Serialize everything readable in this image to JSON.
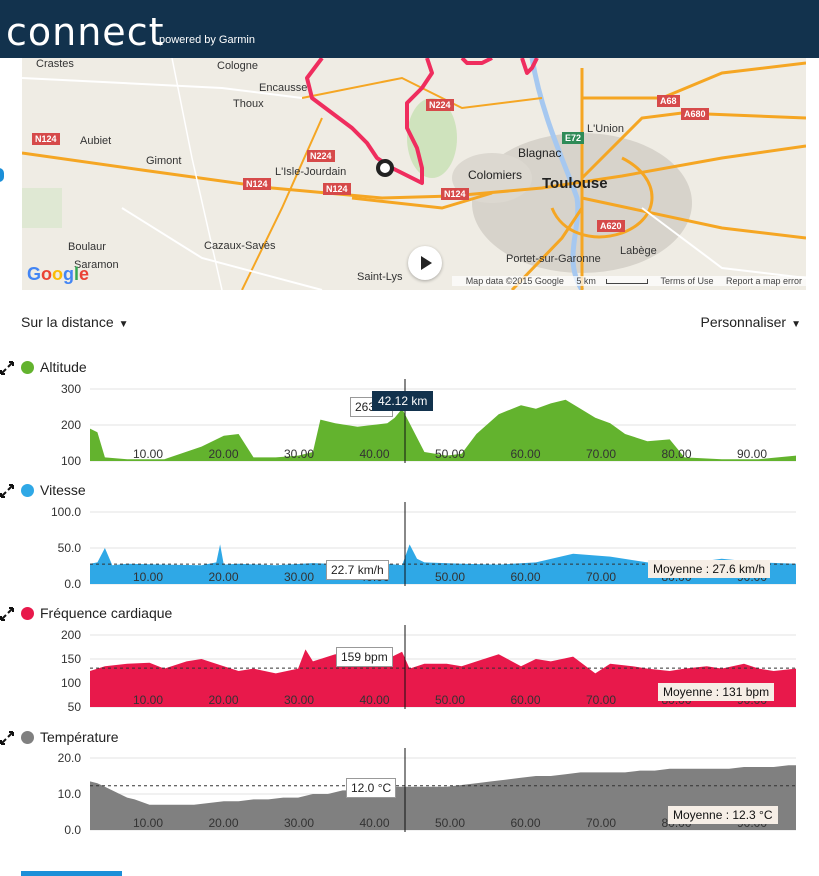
{
  "header": {
    "logo": "connect",
    "powered_by": "powered by Garmin"
  },
  "map": {
    "labels": {
      "crastes": "Crastes",
      "cologne": "Cologne",
      "encausse": "Encausse",
      "thoux": "Thoux",
      "aubiet": "Aubiet",
      "gimont": "Gimont",
      "lisle": "L'Isle-Jourdain",
      "boulaur": "Boulaur",
      "saramon": "Saramon",
      "cazaux": "Cazaux-Savès",
      "saintlys": "Saint-Lys",
      "blagnac": "Blagnac",
      "colomiers": "Colomiers",
      "toulouse": "Toulouse",
      "lunion": "L'Union",
      "portet": "Portet-sur-Garonne",
      "labege": "Labège"
    },
    "shields": {
      "n124a": "N124",
      "n124b": "N124",
      "n124c": "N124",
      "n124d": "N124",
      "n224a": "N224",
      "n224b": "N224",
      "a68": "A68",
      "a680": "A680",
      "e72": "E72",
      "a620": "A620"
    },
    "google": "Google",
    "footer": {
      "data": "Map data ©2015 Google",
      "scale": "5 km",
      "terms": "Terms of Use",
      "report": "Report a map error"
    }
  },
  "controls": {
    "distance": "Sur la distance",
    "customize": "Personnaliser"
  },
  "colors": {
    "altitude": "#63b32e",
    "speed": "#2fa8e6",
    "heart": "#e8194b",
    "temperature": "#808080",
    "header": "#12324d"
  },
  "x_ticks": [
    "10.00",
    "20.00",
    "30.00",
    "40.00",
    "50.00",
    "60.00",
    "70.00",
    "80.00",
    "90.00"
  ],
  "cursor": {
    "km_label": "42.12 km"
  },
  "charts": {
    "altitude": {
      "title": "Altitude",
      "yticks": [
        "300",
        "200",
        "100"
      ],
      "tooltip": "263 m"
    },
    "speed": {
      "title": "Vitesse",
      "yticks": [
        "100.0",
        "50.0",
        "0.0"
      ],
      "tooltip": "22.7 km/h",
      "average": "Moyenne : 27.6 km/h"
    },
    "heart": {
      "title": "Fréquence cardiaque",
      "yticks": [
        "200",
        "150",
        "100",
        "50"
      ],
      "tooltip": "159 bpm",
      "average": "Moyenne : 131 bpm"
    },
    "temperature": {
      "title": "Température",
      "yticks": [
        "20.0",
        "10.0",
        "0.0"
      ],
      "tooltip": "12.0 °C",
      "average": "Moyenne : 12.3 °C"
    }
  },
  "chart_data": [
    {
      "type": "area",
      "title": "Altitude",
      "xlabel": "",
      "ylabel": "",
      "ylim": [
        100,
        300
      ],
      "xlim": [
        0,
        95
      ],
      "x": [
        0,
        1,
        2,
        5,
        10,
        15,
        18,
        20,
        22,
        25,
        28,
        30,
        31,
        33,
        36,
        40,
        41,
        42,
        43,
        45,
        48,
        50,
        52,
        55,
        58,
        60,
        62,
        64,
        66,
        68,
        70,
        72,
        75,
        78,
        80,
        85,
        90,
        95
      ],
      "y": [
        190,
        180,
        110,
        105,
        105,
        140,
        170,
        175,
        110,
        110,
        115,
        125,
        215,
        205,
        195,
        205,
        220,
        245,
        205,
        125,
        115,
        120,
        175,
        230,
        255,
        245,
        260,
        270,
        245,
        220,
        205,
        175,
        155,
        160,
        110,
        105,
        105,
        115
      ]
    },
    {
      "type": "area",
      "title": "Vitesse",
      "xlabel": "",
      "ylabel": "",
      "ylim": [
        0,
        100
      ],
      "xlim": [
        0,
        95
      ],
      "average": 27.6,
      "x": [
        0,
        1,
        2,
        3,
        5,
        10,
        15,
        17,
        17.5,
        18,
        20,
        25,
        30,
        35,
        40,
        42,
        43,
        44,
        45,
        50,
        55,
        60,
        65,
        70,
        75,
        80,
        85,
        90,
        95
      ],
      "y": [
        28,
        30,
        50,
        26,
        28,
        27,
        26,
        30,
        55,
        27,
        28,
        26,
        29,
        27,
        28,
        26,
        55,
        35,
        30,
        28,
        27,
        30,
        42,
        38,
        30,
        28,
        35,
        30,
        28
      ]
    },
    {
      "type": "area",
      "title": "Fréquence cardiaque",
      "xlabel": "",
      "ylabel": "",
      "ylim": [
        50,
        200
      ],
      "xlim": [
        0,
        95
      ],
      "average": 131,
      "x": [
        0,
        2,
        5,
        8,
        10,
        13,
        15,
        18,
        20,
        22,
        25,
        28,
        29,
        30,
        31,
        33,
        36,
        38,
        40,
        42,
        43,
        45,
        48,
        50,
        53,
        55,
        58,
        60,
        62,
        65,
        68,
        70,
        73,
        75,
        78,
        80,
        83,
        85,
        88,
        90,
        92,
        95
      ],
      "y": [
        125,
        135,
        140,
        142,
        130,
        145,
        150,
        135,
        125,
        130,
        120,
        130,
        170,
        145,
        150,
        160,
        155,
        140,
        150,
        165,
        130,
        140,
        140,
        135,
        150,
        160,
        135,
        150,
        145,
        155,
        120,
        140,
        135,
        130,
        125,
        130,
        135,
        130,
        140,
        130,
        125,
        130
      ]
    },
    {
      "type": "area",
      "title": "Température",
      "xlabel": "",
      "ylabel": "",
      "ylim": [
        0,
        20
      ],
      "xlim": [
        0,
        95
      ],
      "average": 12.3,
      "x": [
        0,
        1,
        2,
        3,
        4,
        5,
        6,
        8,
        10,
        12,
        14,
        16,
        18,
        20,
        22,
        24,
        26,
        28,
        30,
        32,
        34,
        36,
        38,
        40,
        42,
        44,
        46,
        48,
        50,
        52,
        54,
        56,
        58,
        60,
        62,
        64,
        66,
        68,
        70,
        72,
        74,
        76,
        78,
        80,
        82,
        84,
        86,
        88,
        90,
        92,
        94,
        95
      ],
      "y": [
        13.5,
        13,
        12,
        11,
        10,
        9,
        8.5,
        7,
        7,
        7,
        7,
        7.5,
        8,
        8,
        8.5,
        8.5,
        9,
        9,
        10,
        10,
        11,
        11,
        11.5,
        12,
        12,
        12,
        12,
        12,
        12.5,
        13,
        13.5,
        14,
        14.5,
        15,
        15,
        15.5,
        16,
        16,
        16,
        16,
        16.5,
        16.5,
        17,
        17,
        17,
        17,
        17,
        17.5,
        17.5,
        17.5,
        18,
        18
      ]
    }
  ]
}
